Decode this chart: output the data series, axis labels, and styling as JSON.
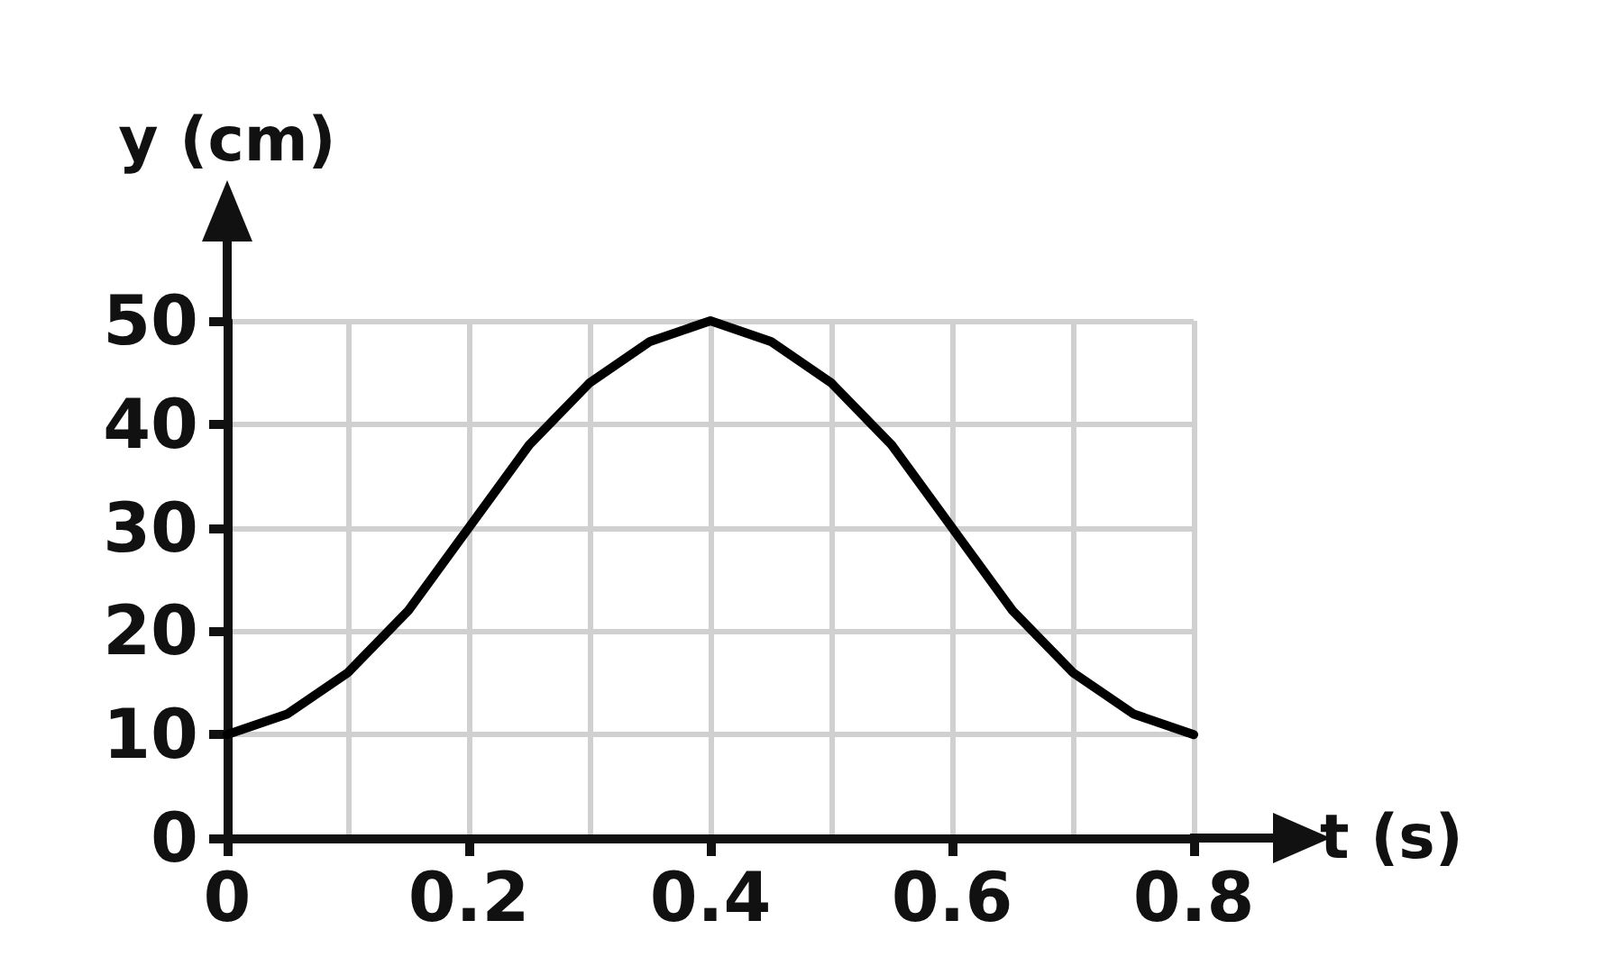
{
  "chart_data": {
    "type": "line",
    "xlabel": "t (s)",
    "ylabel": "y (cm)",
    "x": [
      0,
      0.05,
      0.1,
      0.15,
      0.2,
      0.25,
      0.3,
      0.35,
      0.4,
      0.45,
      0.5,
      0.55,
      0.6,
      0.65,
      0.7,
      0.75,
      0.8
    ],
    "series": [
      {
        "color": "#000000",
        "values": [
          10,
          12,
          16,
          22,
          30,
          38,
          44,
          48,
          50,
          48,
          44,
          38,
          30,
          22,
          16,
          12,
          10
        ]
      }
    ],
    "xlim": [
      0,
      0.8
    ],
    "ylim": [
      0,
      50
    ],
    "xticks": [
      0,
      {
        "value": 0.1,
        "label": null
      },
      0.2,
      {
        "value": 0.3,
        "label": null
      },
      0.4,
      {
        "value": 0.5,
        "label": null
      },
      0.6,
      {
        "value": 0.7,
        "label": null
      },
      0.8
    ],
    "yticks": [
      0,
      10,
      20,
      30,
      40,
      50
    ],
    "grid": true,
    "marker": "none",
    "line_style": "solid"
  }
}
